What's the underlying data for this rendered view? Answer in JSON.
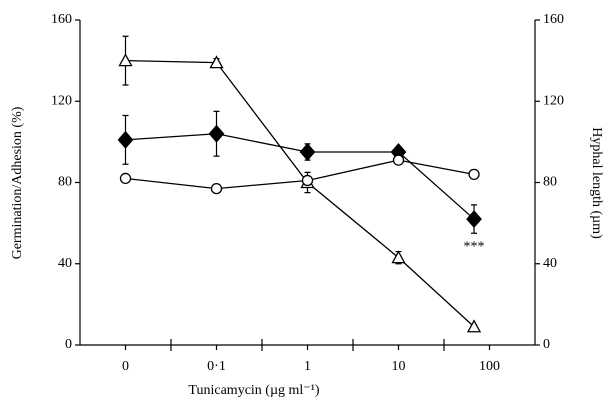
{
  "chart_data": {
    "type": "line",
    "xlabel": "Tunicamycin (µg ml⁻¹)",
    "ylabel": "Germination/Adhesion (%)",
    "y2label": "Hyphal length (µm)",
    "xlim": [
      -0.5,
      4.5
    ],
    "xticks": [
      {
        "value": 0,
        "label": "0"
      },
      {
        "value": 1,
        "label": "0·1"
      },
      {
        "value": 2,
        "label": "1"
      },
      {
        "value": 3,
        "label": "10"
      },
      {
        "value": 4,
        "label": "100"
      }
    ],
    "xminorticks": [
      0.5,
      1.5,
      2.5,
      3.5
    ],
    "ylim": [
      0,
      160
    ],
    "yticks": [
      0,
      40,
      80,
      120,
      160
    ],
    "y2lim": [
      0,
      160
    ],
    "y2ticks": [
      0,
      40,
      80,
      120,
      160
    ],
    "color": "#000000",
    "series": [
      {
        "marker": "triangle",
        "filled": false,
        "axis": "y2",
        "x": [
          0,
          1,
          2,
          3,
          3.83
        ],
        "values": [
          140,
          139,
          80,
          43,
          9
        ],
        "errors": [
          12,
          2,
          5,
          3,
          1
        ]
      },
      {
        "marker": "diamond",
        "filled": true,
        "x": [
          0,
          1,
          2,
          3,
          3.83
        ],
        "values": [
          101,
          104,
          95,
          95,
          62
        ],
        "errors": [
          12,
          11,
          4,
          2,
          7
        ]
      },
      {
        "marker": "circle",
        "filled": false,
        "x": [
          0,
          1,
          2,
          3,
          3.83
        ],
        "values": [
          82,
          77,
          81,
          91,
          84
        ],
        "errors": [
          1,
          1,
          1,
          1,
          1
        ]
      }
    ],
    "annotations": [
      {
        "text": "***",
        "x": 3.83,
        "y": 48
      }
    ]
  }
}
